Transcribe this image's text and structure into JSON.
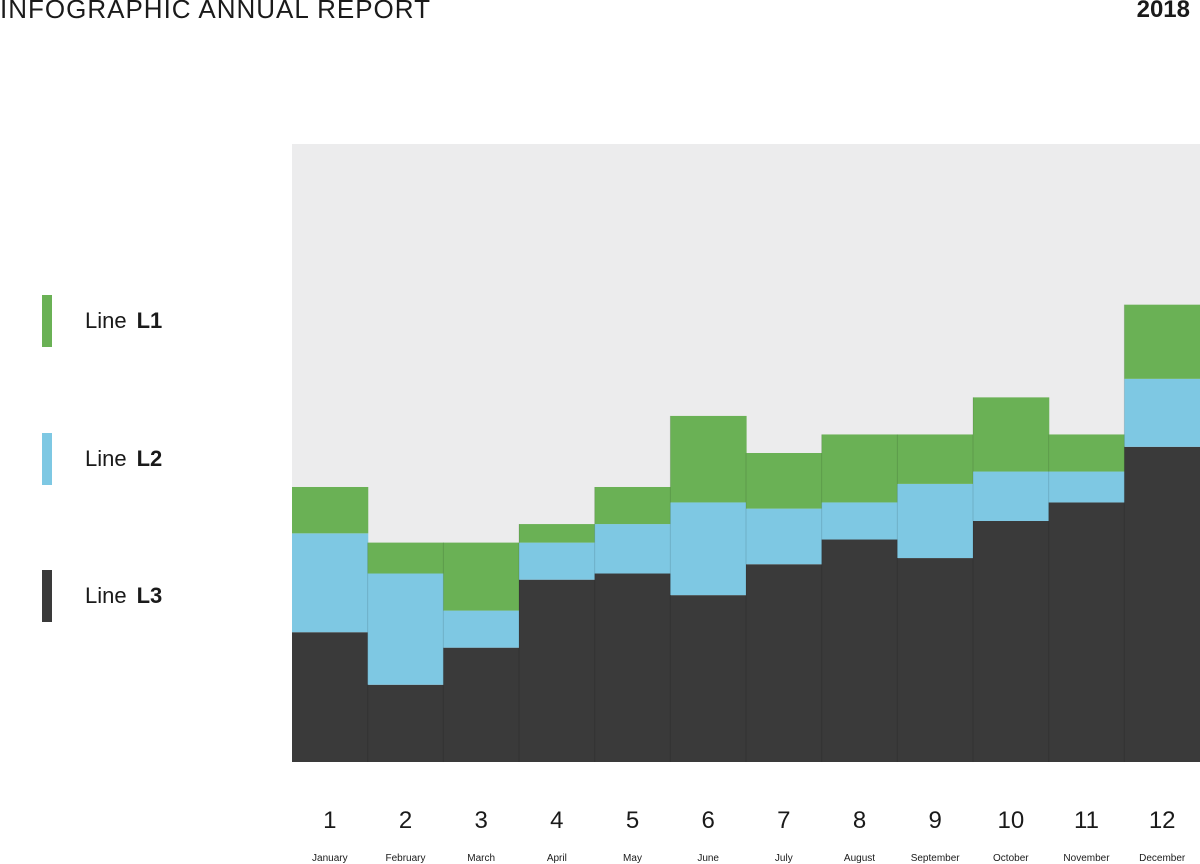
{
  "header": {
    "title": "INFOGRAPHIC ANNUAL REPORT",
    "year": "2018"
  },
  "legend": [
    {
      "prefix": "Line",
      "label": "L1",
      "color": "#6ab155"
    },
    {
      "prefix": "Line",
      "label": "L2",
      "color": "#7ec8e3"
    },
    {
      "prefix": "Line",
      "label": "L3",
      "color": "#3a3a3a"
    }
  ],
  "chart_data": {
    "type": "bar",
    "stacked": true,
    "categories": [
      "1",
      "2",
      "3",
      "4",
      "5",
      "6",
      "7",
      "8",
      "9",
      "10",
      "11",
      "12"
    ],
    "sublabels": [
      "January",
      "February",
      "March",
      "April",
      "May",
      "June",
      "July",
      "August",
      "September",
      "October",
      "November",
      "December"
    ],
    "series": [
      {
        "name": "L3",
        "color": "#3a3a3a",
        "values": [
          21,
          12.5,
          18.5,
          29.5,
          30.5,
          27,
          32,
          36,
          33,
          39,
          42,
          51
        ]
      },
      {
        "name": "L2",
        "color": "#7ec8e3",
        "values": [
          16,
          18,
          6,
          6,
          8,
          15,
          9,
          6,
          12,
          8,
          5,
          11
        ]
      },
      {
        "name": "L1",
        "color": "#6ab155",
        "values": [
          7.5,
          5,
          11,
          3,
          6,
          14,
          9,
          11,
          8,
          12,
          6,
          12
        ]
      }
    ],
    "ylim": [
      0,
      100
    ],
    "background": "#ececed"
  }
}
